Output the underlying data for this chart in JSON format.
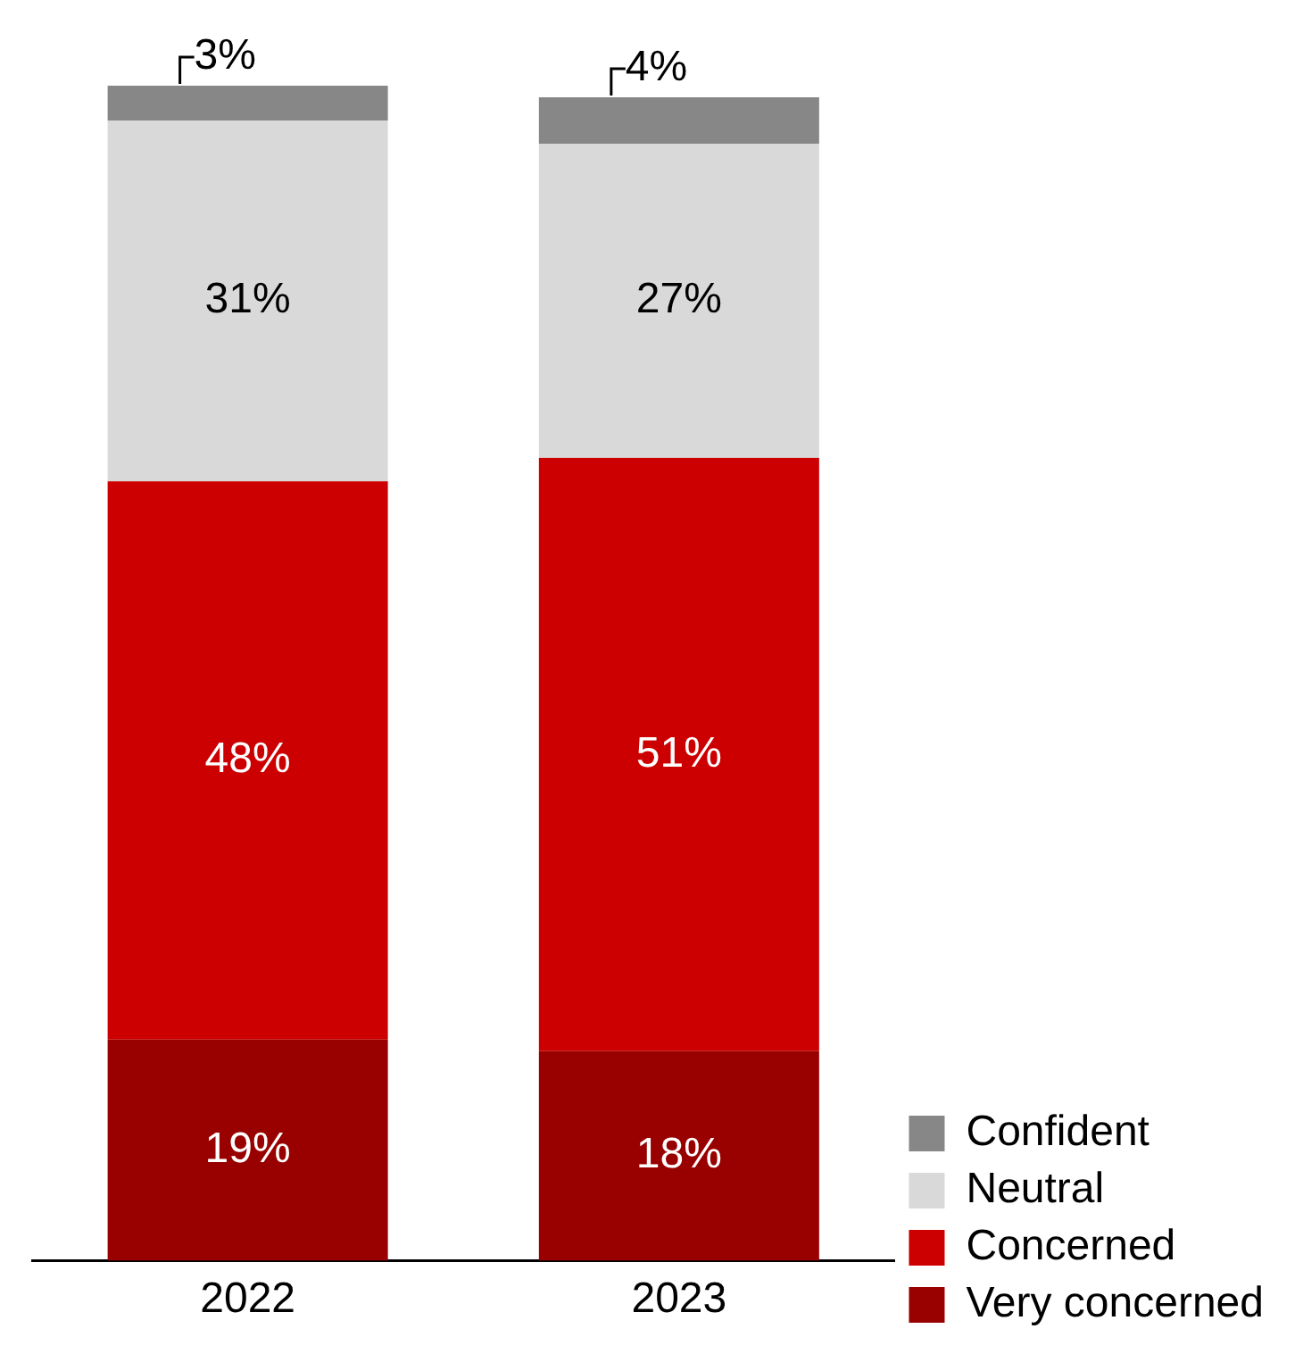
{
  "chart_data": {
    "type": "bar",
    "stacked": true,
    "categories": [
      "2022",
      "2023"
    ],
    "series": [
      {
        "name": "Very concerned",
        "color": "#990000",
        "values": [
          19,
          18
        ],
        "value_labels": [
          "19%",
          "18%"
        ]
      },
      {
        "name": "Concerned",
        "color": "#cc0000",
        "values": [
          48,
          51
        ],
        "value_labels": [
          "48%",
          "51%"
        ]
      },
      {
        "name": "Neutral",
        "color": "#d9d9d9",
        "values": [
          31,
          27
        ],
        "value_labels": [
          "31%",
          "27%"
        ]
      },
      {
        "name": "Confident",
        "color": "#878787",
        "values": [
          3,
          4
        ],
        "value_labels": [
          "3%",
          "4%"
        ]
      }
    ],
    "legend": "bottom right",
    "grid": false
  }
}
